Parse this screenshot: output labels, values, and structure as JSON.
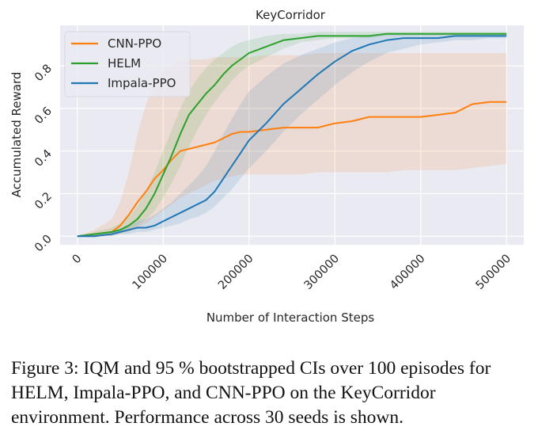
{
  "chart_data": {
    "type": "line",
    "title": "KeyCorridor",
    "xlabel": "Number of Interaction Steps",
    "ylabel": "Accumulated Reward",
    "xlim": [
      -20000,
      520000
    ],
    "ylim": [
      -0.04,
      0.99
    ],
    "xticks": [
      0,
      100000,
      200000,
      300000,
      400000,
      500000
    ],
    "xtick_labels": [
      "0",
      "100000",
      "200000",
      "300000",
      "400000",
      "500000"
    ],
    "yticks": [
      0.0,
      0.2,
      0.4,
      0.6,
      0.8
    ],
    "ytick_labels": [
      "0.0",
      "0.2",
      "0.4",
      "0.6",
      "0.8"
    ],
    "grid": true,
    "legend_position": "top-left",
    "x": [
      0,
      20000,
      40000,
      50000,
      60000,
      70000,
      80000,
      90000,
      100000,
      110000,
      120000,
      130000,
      140000,
      150000,
      160000,
      170000,
      180000,
      190000,
      200000,
      220000,
      240000,
      260000,
      280000,
      300000,
      320000,
      340000,
      360000,
      380000,
      400000,
      420000,
      440000,
      460000,
      480000,
      500000
    ],
    "series": [
      {
        "name": "CNN-PPO",
        "color": "#ff7f0e",
        "values": [
          0.0,
          0.01,
          0.02,
          0.05,
          0.1,
          0.16,
          0.21,
          0.27,
          0.31,
          0.36,
          0.4,
          0.41,
          0.42,
          0.43,
          0.44,
          0.46,
          0.48,
          0.49,
          0.49,
          0.5,
          0.51,
          0.51,
          0.51,
          0.53,
          0.54,
          0.56,
          0.56,
          0.56,
          0.56,
          0.57,
          0.58,
          0.62,
          0.63,
          0.63
        ],
        "ci_low": [
          0.0,
          0.0,
          0.0,
          0.01,
          0.02,
          0.04,
          0.06,
          0.09,
          0.12,
          0.15,
          0.18,
          0.2,
          0.22,
          0.24,
          0.26,
          0.27,
          0.28,
          0.29,
          0.29,
          0.29,
          0.29,
          0.29,
          0.3,
          0.3,
          0.3,
          0.3,
          0.3,
          0.31,
          0.31,
          0.31,
          0.31,
          0.32,
          0.33,
          0.34
        ],
        "ci_high": [
          0.0,
          0.03,
          0.08,
          0.16,
          0.3,
          0.48,
          0.62,
          0.72,
          0.77,
          0.8,
          0.82,
          0.83,
          0.83,
          0.83,
          0.84,
          0.84,
          0.84,
          0.84,
          0.84,
          0.85,
          0.85,
          0.85,
          0.86,
          0.86,
          0.86,
          0.86,
          0.86,
          0.86,
          0.86,
          0.86,
          0.86,
          0.86,
          0.86,
          0.86
        ]
      },
      {
        "name": "HELM",
        "color": "#2ca02c",
        "values": [
          0.0,
          0.01,
          0.02,
          0.03,
          0.05,
          0.08,
          0.13,
          0.2,
          0.29,
          0.38,
          0.48,
          0.57,
          0.62,
          0.67,
          0.71,
          0.76,
          0.8,
          0.83,
          0.86,
          0.89,
          0.92,
          0.93,
          0.94,
          0.94,
          0.94,
          0.94,
          0.95,
          0.95,
          0.95,
          0.95,
          0.95,
          0.95,
          0.95,
          0.95
        ],
        "ci_low": [
          0.0,
          0.0,
          0.01,
          0.02,
          0.03,
          0.05,
          0.08,
          0.12,
          0.18,
          0.25,
          0.33,
          0.42,
          0.5,
          0.57,
          0.63,
          0.68,
          0.73,
          0.77,
          0.8,
          0.84,
          0.88,
          0.91,
          0.92,
          0.93,
          0.93,
          0.93,
          0.94,
          0.94,
          0.94,
          0.94,
          0.94,
          0.94,
          0.94,
          0.94
        ],
        "ci_high": [
          0.0,
          0.02,
          0.04,
          0.06,
          0.09,
          0.14,
          0.21,
          0.3,
          0.4,
          0.5,
          0.6,
          0.68,
          0.74,
          0.79,
          0.83,
          0.86,
          0.89,
          0.91,
          0.92,
          0.94,
          0.95,
          0.95,
          0.96,
          0.96,
          0.96,
          0.96,
          0.96,
          0.96,
          0.96,
          0.96,
          0.96,
          0.96,
          0.96,
          0.96
        ]
      },
      {
        "name": "Impala-PPO",
        "color": "#1f77b4",
        "values": [
          0.0,
          0.0,
          0.01,
          0.02,
          0.03,
          0.04,
          0.04,
          0.05,
          0.07,
          0.09,
          0.11,
          0.13,
          0.15,
          0.17,
          0.21,
          0.27,
          0.33,
          0.39,
          0.45,
          0.53,
          0.62,
          0.69,
          0.76,
          0.82,
          0.87,
          0.9,
          0.92,
          0.93,
          0.93,
          0.93,
          0.94,
          0.94,
          0.94,
          0.94
        ],
        "ci_low": [
          0.0,
          0.0,
          0.0,
          0.01,
          0.01,
          0.02,
          0.02,
          0.03,
          0.04,
          0.05,
          0.06,
          0.08,
          0.09,
          0.11,
          0.14,
          0.18,
          0.22,
          0.27,
          0.32,
          0.4,
          0.49,
          0.57,
          0.64,
          0.71,
          0.77,
          0.82,
          0.86,
          0.88,
          0.9,
          0.91,
          0.92,
          0.92,
          0.93,
          0.93
        ],
        "ci_high": [
          0.0,
          0.01,
          0.02,
          0.03,
          0.05,
          0.07,
          0.08,
          0.1,
          0.13,
          0.16,
          0.2,
          0.24,
          0.28,
          0.33,
          0.4,
          0.48,
          0.55,
          0.62,
          0.68,
          0.75,
          0.81,
          0.85,
          0.88,
          0.91,
          0.93,
          0.94,
          0.95,
          0.95,
          0.95,
          0.95,
          0.95,
          0.95,
          0.95,
          0.95
        ]
      }
    ]
  },
  "caption": "Figure 3: IQM and 95 % bootstrapped CIs over 100 episodes for HELM, Impala-PPO, and CNN-PPO on the KeyCorridor environment. Performance across 30 seeds is shown."
}
